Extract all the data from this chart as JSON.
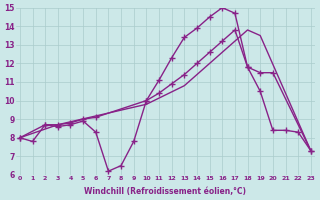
{
  "line1_x": [
    0,
    1,
    2,
    3,
    4,
    5,
    6,
    7,
    8,
    9,
    10,
    11,
    12,
    13,
    14,
    15,
    16,
    17,
    18,
    19,
    20,
    21,
    22,
    23
  ],
  "line1_y": [
    8.0,
    7.8,
    8.7,
    8.6,
    8.7,
    8.9,
    8.3,
    6.2,
    6.5,
    7.8,
    10.0,
    11.1,
    12.3,
    13.4,
    13.9,
    14.5,
    15.0,
    14.7,
    11.8,
    10.5,
    8.4,
    8.4,
    8.3,
    7.3
  ],
  "line2_x": [
    0,
    2,
    3,
    4,
    5,
    6,
    10,
    11,
    12,
    13,
    14,
    15,
    16,
    17,
    18,
    19,
    20,
    23
  ],
  "line2_y": [
    8.0,
    8.7,
    8.7,
    8.8,
    9.0,
    9.1,
    10.0,
    10.4,
    10.9,
    11.4,
    12.0,
    12.6,
    13.2,
    13.8,
    11.8,
    11.5,
    11.5,
    7.3
  ],
  "line3_x": [
    0,
    3,
    10,
    13,
    18,
    19,
    23
  ],
  "line3_y": [
    8.0,
    8.7,
    9.8,
    10.8,
    13.8,
    13.5,
    7.3
  ],
  "line_color": "#882288",
  "bg_color": "#cce8e8",
  "grid_color": "#aacccc",
  "xlabel": "Windchill (Refroidissement éolien,°C)",
  "xlim": [
    0,
    23
  ],
  "ylim": [
    6,
    15
  ],
  "yticks": [
    6,
    7,
    8,
    9,
    10,
    11,
    12,
    13,
    14,
    15
  ],
  "xticks": [
    0,
    1,
    2,
    3,
    4,
    5,
    6,
    7,
    8,
    9,
    10,
    11,
    12,
    13,
    14,
    15,
    16,
    17,
    18,
    19,
    20,
    21,
    22,
    23
  ],
  "marker": "+",
  "markersize": 4,
  "linewidth": 1.0
}
